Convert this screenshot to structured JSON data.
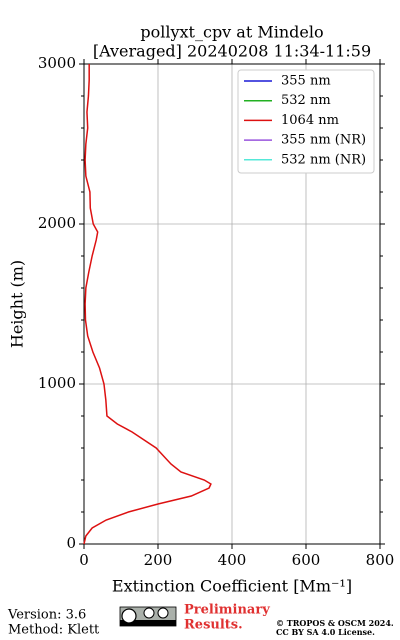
{
  "chart_data": {
    "type": "line",
    "title": "pollyxt_cpv at Mindelo",
    "subtitle": "[Averaged] 20240208 11:34-11:59",
    "xlabel": "Extinction Coefficient [Mm⁻¹]",
    "ylabel": "Height (m)",
    "y": [
      0,
      50,
      100,
      150,
      200,
      250,
      300,
      350,
      375,
      400,
      450,
      500,
      550,
      600,
      700,
      750,
      800,
      900,
      1000,
      1100,
      1200,
      1300,
      1400,
      1500,
      1600,
      1700,
      1800,
      1900,
      1950,
      2000,
      2100,
      2200,
      2300,
      2400,
      2500,
      2600,
      2700,
      2800,
      2900,
      3000
    ],
    "series": [
      {
        "name": "355 nm",
        "color": "#1a1ad6",
        "values": [
          null,
          null,
          null,
          null,
          null,
          null,
          null,
          null,
          null,
          null,
          null,
          null,
          null,
          null,
          null,
          null,
          null,
          null,
          null,
          null,
          null,
          null,
          null,
          null,
          null,
          null,
          null,
          null,
          null,
          null,
          null,
          null,
          null,
          null,
          null,
          null,
          null,
          null,
          null,
          null
        ]
      },
      {
        "name": "532 nm",
        "color": "#22b022",
        "values": [
          null,
          null,
          null,
          null,
          null,
          null,
          null,
          null,
          null,
          null,
          null,
          null,
          null,
          null,
          null,
          null,
          null,
          null,
          null,
          null,
          null,
          null,
          null,
          null,
          null,
          null,
          null,
          null,
          null,
          null,
          null,
          null,
          null,
          null,
          null,
          null,
          null,
          null,
          null,
          null
        ]
      },
      {
        "name": "1064 nm",
        "color": "#dd1111",
        "values": [
          0,
          5,
          22,
          60,
          120,
          200,
          290,
          338,
          343,
          325,
          262,
          235,
          215,
          195,
          130,
          90,
          62,
          59,
          54,
          42,
          24,
          10,
          4,
          3,
          5,
          13,
          22,
          33,
          37,
          25,
          17,
          16,
          5,
          3,
          5,
          10,
          8,
          12,
          14,
          14
        ]
      },
      {
        "name": "355 nm (NR)",
        "color": "#9955dd",
        "values": [
          null,
          null,
          null,
          null,
          null,
          null,
          null,
          null,
          null,
          null,
          null,
          null,
          null,
          null,
          null,
          null,
          null,
          null,
          null,
          null,
          null,
          null,
          null,
          null,
          null,
          null,
          null,
          null,
          null,
          null,
          null,
          null,
          null,
          null,
          null,
          null,
          null,
          null,
          null,
          null
        ]
      },
      {
        "name": "532 nm (NR)",
        "color": "#55e8d8",
        "values": [
          null,
          null,
          null,
          null,
          null,
          null,
          null,
          null,
          null,
          null,
          null,
          null,
          null,
          null,
          null,
          null,
          null,
          null,
          null,
          null,
          null,
          null,
          null,
          null,
          null,
          null,
          null,
          null,
          null,
          null,
          null,
          null,
          null,
          null,
          null,
          null,
          null,
          null,
          null,
          null
        ]
      }
    ],
    "xlim": [
      0,
      800
    ],
    "xticks": [
      0,
      200,
      400,
      600,
      800
    ],
    "ylim": [
      0,
      3000
    ],
    "yticks": [
      0,
      1000,
      2000,
      3000
    ],
    "grid": true,
    "legend": "upper right"
  },
  "footer": {
    "version": "Version: 3.6",
    "method": "Method: Klett",
    "notice": [
      "Preliminary",
      "Results."
    ],
    "copyright": [
      "© TROPOS & OSCM 2024.",
      "CC BY SA 4.0 License."
    ]
  }
}
